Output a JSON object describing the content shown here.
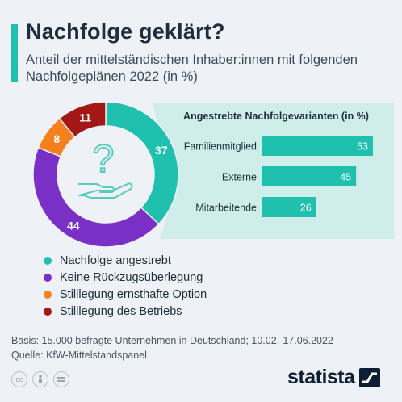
{
  "header": {
    "title": "Nachfolge geklärt?",
    "subtitle": "Anteil der mittelständischen Inhaber:innen mit folgenden Nachfolgeplänen 2022 (in %)"
  },
  "colors": {
    "accent": "#1fc0ad",
    "teal": "#1fc0ad",
    "purple": "#7a30c6",
    "orange": "#f5801e",
    "darkred": "#a31717",
    "panel": "#cfeee9",
    "icon": "#58cbbd"
  },
  "chart_data": [
    {
      "type": "pie",
      "donut": true,
      "slices": [
        {
          "label": "Nachfolge angestrebt",
          "value": 37,
          "color": "#1fc0ad"
        },
        {
          "label": "Keine Rückzugsüberlegung",
          "value": 44,
          "color": "#7a30c6"
        },
        {
          "label": "Stilllegung ernsthafte Option",
          "value": 8,
          "color": "#f5801e"
        },
        {
          "label": "Stilllegung des Betriebs",
          "value": 11,
          "color": "#a31717"
        }
      ]
    },
    {
      "type": "bar",
      "orientation": "horizontal",
      "title": "Angestrebte Nachfolgevarianten (in %)",
      "categories": [
        "Familienmitglied",
        "Externe",
        "Mitarbeitende"
      ],
      "values": [
        53,
        45,
        26
      ],
      "color": "#1fc0ad",
      "xlim": [
        0,
        53
      ]
    }
  ],
  "legend": [
    {
      "label": "Nachfolge angestrebt",
      "color": "#1fc0ad"
    },
    {
      "label": "Keine Rückzugsüberlegung",
      "color": "#7a30c6"
    },
    {
      "label": "Stilllegung ernsthafte Option",
      "color": "#f5801e"
    },
    {
      "label": "Stilllegung des Betriebs",
      "color": "#a31717"
    }
  ],
  "footer": {
    "basis": "Basis: 15.000 befragte Unternehmen in Deutschland; 10.02.-17.06.2022",
    "source": "Quelle: KfW-Mittelstandspanel"
  },
  "license_icons": [
    "cc-icon",
    "person-icon",
    "equals-icon"
  ],
  "logo": {
    "text": "statista"
  }
}
